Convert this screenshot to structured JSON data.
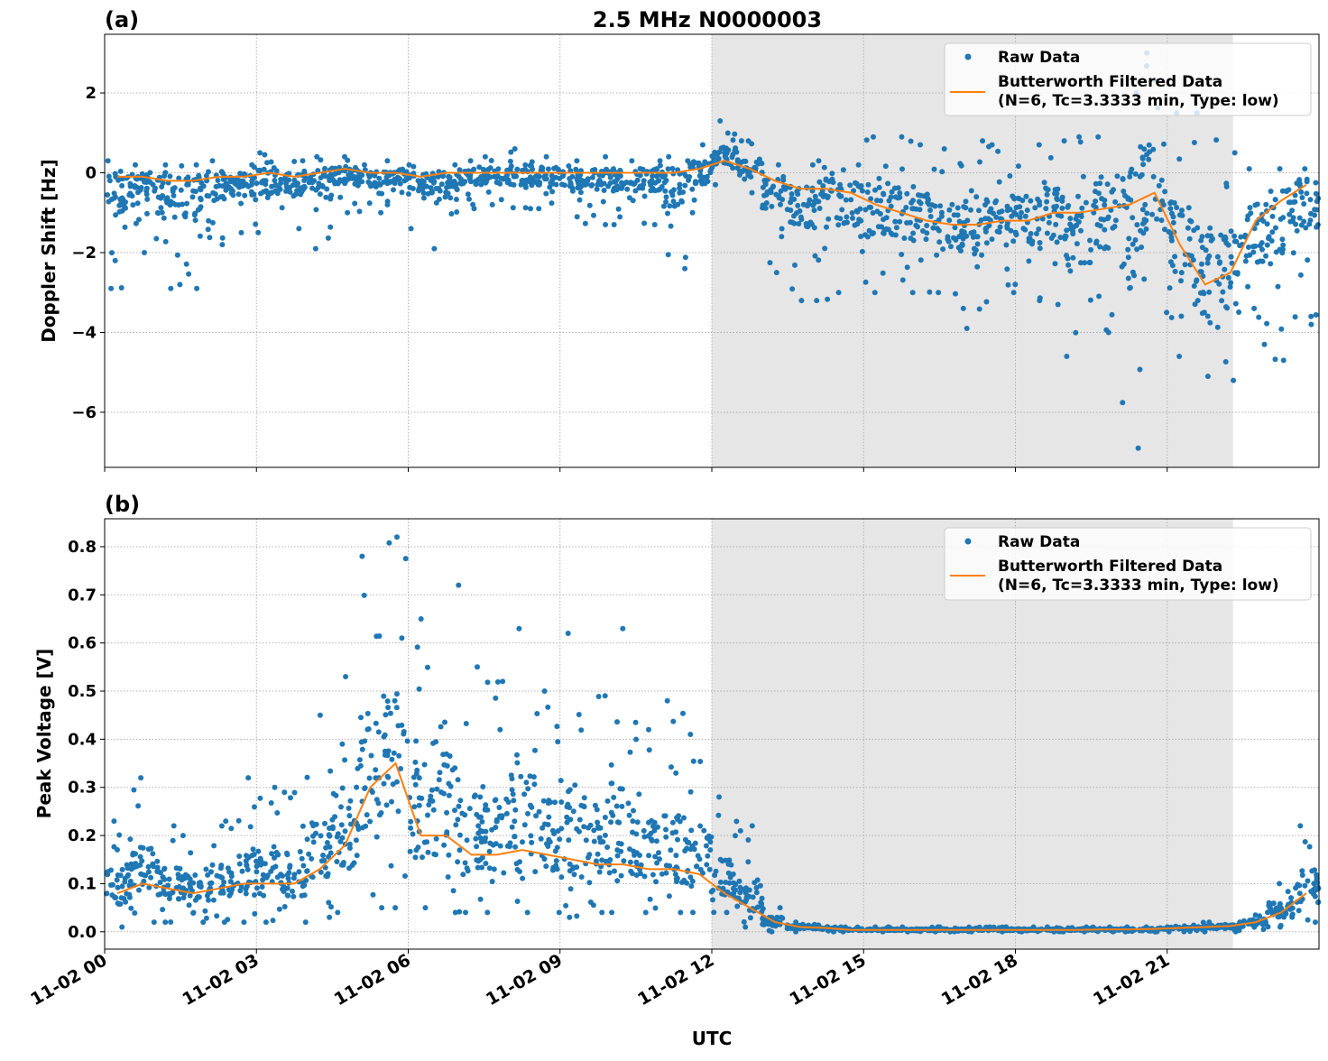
{
  "title": "2.5 MHz N0000003",
  "colors": {
    "raw": "#1f77b4",
    "filtered": "#ff7f0e",
    "shade": "#e6e6e6",
    "grid": "#b0b0b0"
  },
  "chart_data": [
    {
      "type": "scatter",
      "panel_label": "(a)",
      "ylabel": "Doppler Shift [Hz]",
      "xlabel": "",
      "xlim_hours": [
        0,
        24
      ],
      "ylim": [
        -7.38,
        3.47
      ],
      "yticks": [
        -6,
        -4,
        -2,
        0,
        2
      ],
      "ytick_labels": [
        "−6",
        "−4",
        "−2",
        "0",
        "2"
      ],
      "grid": true,
      "shaded_span_hours": [
        12,
        22.3
      ],
      "legend": {
        "placement": "top-right",
        "entries": [
          "Raw Data",
          "Butterworth Filtered Data",
          "(N=6, Tc=3.3333 min, Type: low)"
        ]
      },
      "bin_hours": [
        0,
        0.5,
        1,
        1.5,
        2,
        2.5,
        3,
        3.5,
        4,
        4.5,
        5,
        5.5,
        6,
        6.5,
        7,
        7.5,
        8,
        8.5,
        9,
        9.5,
        10,
        10.5,
        11,
        11.5,
        12,
        12.5,
        13,
        13.5,
        14,
        14.5,
        15,
        15.5,
        16,
        16.5,
        17,
        17.5,
        18,
        18.5,
        19,
        19.5,
        20,
        20.5,
        21,
        21.5,
        22,
        22.5,
        23,
        23.5
      ],
      "series": [
        {
          "name": "Raw Data",
          "kind": "scatter-envelope",
          "min": [
            -2.9,
            -2.0,
            -2.9,
            -2.9,
            -1.8,
            -1.5,
            -1.5,
            -1.4,
            -1.9,
            -1.0,
            -1.0,
            -0.8,
            -1.4,
            -1.9,
            -0.9,
            -0.8,
            -0.9,
            -0.9,
            -1.1,
            -1.3,
            -1.3,
            -1.3,
            -2.4,
            -1.0,
            -0.3,
            -0.5,
            -2.5,
            -3.2,
            -3.2,
            -3.0,
            -3.0,
            -3.0,
            -3.0,
            -3.4,
            -3.9,
            -3.0,
            -3.2,
            -3.3,
            -4.6,
            -4.0,
            -6.9,
            -3.5,
            -4.6,
            -5.1,
            -5.2,
            -4.3,
            -4.7,
            -3.8
          ],
          "max": [
            0.3,
            0.2,
            0.2,
            0.2,
            0.3,
            0.2,
            0.5,
            0.3,
            0.4,
            0.4,
            0.2,
            0.3,
            0.2,
            0.2,
            0.3,
            0.4,
            0.6,
            0.4,
            0.3,
            0.4,
            0.3,
            0.3,
            0.4,
            0.7,
            1.3,
            0.8,
            0.2,
            0.2,
            0.3,
            0.2,
            0.9,
            0.9,
            0.7,
            0.6,
            0.8,
            0.7,
            0.7,
            0.8,
            0.9,
            0.9,
            2.0,
            3.0,
            1.5,
            1.5,
            0.5,
            0.1,
            0.1,
            0.1
          ]
        },
        {
          "name": "Butterworth Filtered Data",
          "kind": "line",
          "values": [
            -0.1,
            -0.1,
            -0.2,
            -0.2,
            -0.1,
            -0.1,
            0.0,
            -0.1,
            0.0,
            0.1,
            0.0,
            0.0,
            -0.1,
            0.0,
            0.0,
            0.0,
            0.0,
            0.0,
            0.0,
            0.0,
            0.0,
            0.0,
            0.0,
            0.1,
            0.3,
            0.1,
            -0.2,
            -0.4,
            -0.4,
            -0.5,
            -0.8,
            -1.0,
            -1.2,
            -1.3,
            -1.3,
            -1.2,
            -1.2,
            -1.0,
            -1.0,
            -0.9,
            -0.8,
            -0.5,
            -1.8,
            -2.8,
            -2.5,
            -1.2,
            -0.7,
            -0.3
          ]
        }
      ]
    },
    {
      "type": "scatter",
      "panel_label": "(b)",
      "ylabel": "Peak Voltage [V]",
      "xlabel": "UTC",
      "xlim_hours": [
        0,
        24
      ],
      "xticks_hours": [
        0,
        3,
        6,
        9,
        12,
        15,
        18,
        21
      ],
      "xtick_labels": [
        "11-02 00",
        "11-02 03",
        "11-02 06",
        "11-02 09",
        "11-02 12",
        "11-02 15",
        "11-02 18",
        "11-02 21"
      ],
      "ylim": [
        -0.036,
        0.858
      ],
      "yticks": [
        0,
        0.1,
        0.2,
        0.3,
        0.4,
        0.5,
        0.6,
        0.7,
        0.8
      ],
      "ytick_labels": [
        "0.0",
        "0.1",
        "0.2",
        "0.3",
        "0.4",
        "0.5",
        "0.6",
        "0.7",
        "0.8"
      ],
      "grid": true,
      "shaded_span_hours": [
        12,
        22.3
      ],
      "legend": {
        "placement": "top-right",
        "entries": [
          "Raw Data",
          "Butterworth Filtered Data",
          "(N=6, Tc=3.3333 min, Type: low)"
        ]
      },
      "bin_hours": [
        0,
        0.5,
        1,
        1.5,
        2,
        2.5,
        3,
        3.5,
        4,
        4.5,
        5,
        5.5,
        6,
        6.5,
        7,
        7.5,
        8,
        8.5,
        9,
        9.5,
        10,
        10.5,
        11,
        11.5,
        12,
        12.5,
        13,
        13.5,
        14,
        14.5,
        15,
        15.5,
        16,
        16.5,
        17,
        17.5,
        18,
        18.5,
        19,
        19.5,
        20,
        20.5,
        21,
        21.5,
        22,
        22.5,
        23,
        23.5
      ],
      "series": [
        {
          "name": "Raw Data",
          "kind": "scatter-envelope",
          "min": [
            0.01,
            0.02,
            0.02,
            0.02,
            0.02,
            0.02,
            0.02,
            0.02,
            0.03,
            0.04,
            0.05,
            0.05,
            0.05,
            0.04,
            0.04,
            0.04,
            0.04,
            0.04,
            0.03,
            0.04,
            0.04,
            0.04,
            0.04,
            0.04,
            0.04,
            0.01,
            0.0,
            0.0,
            0.0,
            0.0,
            0.0,
            0.0,
            0.0,
            0.0,
            0.0,
            0.0,
            0.0,
            0.0,
            0.0,
            0.0,
            0.0,
            0.0,
            0.0,
            0.0,
            0.0,
            0.005,
            0.01,
            0.02
          ],
          "max": [
            0.23,
            0.32,
            0.22,
            0.2,
            0.23,
            0.32,
            0.3,
            0.29,
            0.45,
            0.53,
            0.78,
            0.82,
            0.65,
            0.72,
            0.55,
            0.52,
            0.63,
            0.5,
            0.62,
            0.49,
            0.63,
            0.42,
            0.48,
            0.41,
            0.28,
            0.22,
            0.05,
            0.02,
            0.015,
            0.01,
            0.01,
            0.01,
            0.01,
            0.01,
            0.01,
            0.01,
            0.01,
            0.01,
            0.01,
            0.01,
            0.01,
            0.01,
            0.012,
            0.02,
            0.02,
            0.04,
            0.1,
            0.22
          ]
        },
        {
          "name": "Butterworth Filtered Data",
          "kind": "line",
          "values": [
            0.08,
            0.1,
            0.09,
            0.08,
            0.09,
            0.1,
            0.1,
            0.1,
            0.13,
            0.18,
            0.3,
            0.35,
            0.2,
            0.2,
            0.16,
            0.16,
            0.17,
            0.16,
            0.15,
            0.14,
            0.14,
            0.13,
            0.13,
            0.12,
            0.08,
            0.05,
            0.02,
            0.01,
            0.008,
            0.004,
            0.004,
            0.004,
            0.004,
            0.004,
            0.004,
            0.004,
            0.004,
            0.004,
            0.004,
            0.005,
            0.005,
            0.006,
            0.008,
            0.01,
            0.012,
            0.02,
            0.04,
            0.08
          ]
        }
      ]
    }
  ]
}
